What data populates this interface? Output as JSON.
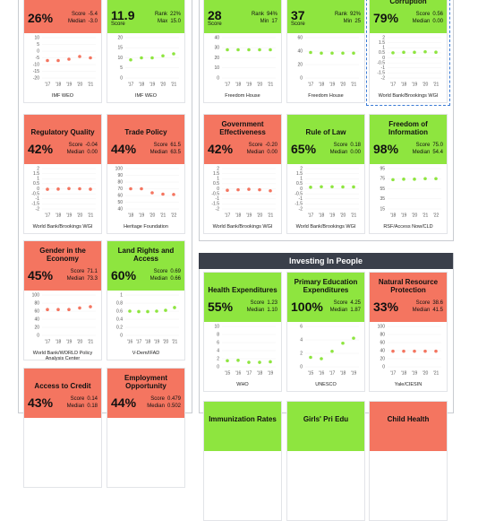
{
  "left_panel": {
    "cards": [
      {
        "score": "26%",
        "stats": [
          {
            "label": "Score",
            "value": "-5.4"
          },
          {
            "label": "Median",
            "value": "-3.0"
          }
        ],
        "color": "#f47560",
        "chart": {
          "ylim": [
            -20,
            10
          ],
          "yticks": [
            10,
            5,
            0,
            -5,
            -10,
            -15,
            -20
          ],
          "x": [
            "'17",
            "'18",
            "'19",
            "'20",
            "'21"
          ],
          "values": [
            -7,
            -7,
            -6,
            -4,
            -5
          ]
        },
        "source": "IMF WEO"
      },
      {
        "score": "11.9",
        "score_caption": "Score",
        "stats": [
          {
            "label": "Rank",
            "value": "22%"
          },
          {
            "label": "Max",
            "value": "15.0"
          }
        ],
        "color": "#8ee53f",
        "chart": {
          "ylim": [
            0,
            20
          ],
          "yticks": [
            20,
            15,
            10,
            5,
            0
          ],
          "x": [
            "'17",
            "'18",
            "'19",
            "'20",
            "'21"
          ],
          "values": [
            9,
            10,
            10,
            11,
            12
          ]
        },
        "source": "IMF WEO"
      },
      {
        "title": "Regulatory Quality",
        "score": "42%",
        "stats": [
          {
            "label": "Score",
            "value": "-0.04"
          },
          {
            "label": "Median",
            "value": "0.00"
          }
        ],
        "color": "#f47560",
        "chart": {
          "ylim": [
            -2,
            2
          ],
          "yticks": [
            2,
            1.5,
            1,
            0.5,
            0,
            -0.5,
            -1,
            -1.5,
            -2
          ],
          "x": [
            "'17",
            "'18",
            "'19",
            "'20",
            "'21"
          ],
          "values": [
            -0.05,
            -0.03,
            0.02,
            0,
            -0.04
          ]
        },
        "source": "World Bank/Brookings WGI"
      },
      {
        "title": "Trade Policy",
        "score": "44%",
        "stats": [
          {
            "label": "Score",
            "value": "61.5"
          },
          {
            "label": "Median",
            "value": "63.5"
          }
        ],
        "color": "#f47560",
        "chart": {
          "ylim": [
            40,
            100
          ],
          "yticks": [
            100,
            90,
            80,
            70,
            60,
            50,
            40
          ],
          "x": [
            "'18",
            "'19",
            "'20",
            "'21",
            "'22"
          ],
          "values": [
            70,
            70,
            64,
            62,
            61.5
          ]
        },
        "source": "Heritage Foundation"
      },
      {
        "title": "Gender in the Economy",
        "score": "45%",
        "stats": [
          {
            "label": "Score",
            "value": "71.1"
          },
          {
            "label": "Median",
            "value": "73.3"
          }
        ],
        "color": "#f47560",
        "chart": {
          "ylim": [
            0,
            100
          ],
          "yticks": [
            100,
            80,
            60,
            40,
            20,
            0
          ],
          "x": [
            "'17",
            "'18",
            "'19",
            "'20",
            "'21"
          ],
          "values": [
            64,
            64,
            64,
            68,
            71.1
          ]
        },
        "source": "World Bank/WORLD Policy Analysis Center"
      },
      {
        "title": "Land Rights and Access",
        "score": "60%",
        "stats": [
          {
            "label": "Score",
            "value": "0.69"
          },
          {
            "label": "Median",
            "value": "0.66"
          }
        ],
        "color": "#8ee53f",
        "chart": {
          "ylim": [
            0,
            1
          ],
          "yticks": [
            1,
            0.8,
            0.6,
            0.4,
            0.2,
            0
          ],
          "x": [
            "'16",
            "'17",
            "'18",
            "'19",
            "'20",
            "'21"
          ],
          "values": [
            0.6,
            0.59,
            0.59,
            0.6,
            0.62,
            0.69
          ]
        },
        "source": "V-Dem/IFAD"
      },
      {
        "title": "Access to Credit",
        "score": "43%",
        "stats": [
          {
            "label": "Score",
            "value": "0.14"
          },
          {
            "label": "Median",
            "value": "0.18"
          }
        ],
        "color": "#f47560"
      },
      {
        "title": "Employment Opportunity",
        "score": "44%",
        "stats": [
          {
            "label": "Score",
            "value": "0.479"
          },
          {
            "label": "Median",
            "value": "0.502"
          }
        ],
        "color": "#f47560"
      }
    ]
  },
  "right_panel": {
    "cards": [
      {
        "score": "28",
        "score_caption": "Score",
        "stats": [
          {
            "label": "Rank",
            "value": "94%"
          },
          {
            "label": "Min",
            "value": "17"
          }
        ],
        "color": "#8ee53f",
        "chart": {
          "ylim": [
            0,
            40
          ],
          "yticks": [
            40,
            30,
            20,
            10,
            0
          ],
          "x": [
            "'17",
            "'18",
            "'19",
            "'20",
            "'21"
          ],
          "values": [
            28,
            28,
            28,
            28,
            28
          ]
        },
        "source": "Freedom House"
      },
      {
        "score": "37",
        "score_caption": "Score",
        "stats": [
          {
            "label": "Rank",
            "value": "92%"
          },
          {
            "label": "Min",
            "value": "25"
          }
        ],
        "color": "#8ee53f",
        "chart": {
          "ylim": [
            0,
            60
          ],
          "yticks": [
            60,
            40,
            20,
            0
          ],
          "x": [
            "'17",
            "'18",
            "'19",
            "'20",
            "'21"
          ],
          "values": [
            38,
            37,
            37,
            37,
            37
          ]
        },
        "source": "Freedom House"
      },
      {
        "title": "Corruption",
        "score": "79%",
        "stats": [
          {
            "label": "Score",
            "value": "0.56"
          },
          {
            "label": "Median",
            "value": "0.00"
          }
        ],
        "color": "#8ee53f",
        "chart": {
          "ylim": [
            -2,
            2
          ],
          "yticks": [
            2,
            1.5,
            1,
            0.5,
            0,
            -0.5,
            -1,
            -1.5,
            -2
          ],
          "x": [
            "'17",
            "'18",
            "'19",
            "'20",
            "'21"
          ],
          "values": [
            0.5,
            0.55,
            0.55,
            0.6,
            0.56
          ]
        },
        "source": "World Bank/Brookings WGI"
      },
      {
        "title": "Government Effectiveness",
        "score": "42%",
        "stats": [
          {
            "label": "Score",
            "value": "-0.20"
          },
          {
            "label": "Median",
            "value": "0.00"
          }
        ],
        "color": "#f47560",
        "chart": {
          "ylim": [
            -2,
            2
          ],
          "yticks": [
            2,
            1.5,
            1,
            0.5,
            0,
            -0.5,
            -1,
            -1.5,
            -2
          ],
          "x": [
            "'17",
            "'18",
            "'19",
            "'20",
            "'21"
          ],
          "values": [
            -0.15,
            -0.1,
            -0.05,
            -0.1,
            -0.2
          ]
        },
        "source": "World Bank/Brookings WGI"
      },
      {
        "title": "Rule of Law",
        "score": "65%",
        "stats": [
          {
            "label": "Score",
            "value": "0.18"
          },
          {
            "label": "Median",
            "value": "0.00"
          }
        ],
        "color": "#8ee53f",
        "chart": {
          "ylim": [
            -2,
            2
          ],
          "yticks": [
            2,
            1.5,
            1,
            0.5,
            0,
            -0.5,
            -1,
            -1.5,
            -2
          ],
          "x": [
            "'17",
            "'18",
            "'19",
            "'20",
            "'21"
          ],
          "values": [
            0.15,
            0.2,
            0.2,
            0.18,
            0.18
          ]
        },
        "source": "World Bank/Brookings WGI"
      },
      {
        "title": "Freedom of Information",
        "score": "98%",
        "stats": [
          {
            "label": "Score",
            "value": "75.0"
          },
          {
            "label": "Median",
            "value": "54.4"
          }
        ],
        "color": "#8ee53f",
        "chart": {
          "ylim": [
            15,
            95
          ],
          "yticks": [
            95,
            75,
            55,
            35,
            15
          ],
          "x": [
            "'18",
            "'19",
            "'20",
            "'21",
            "'22"
          ],
          "values": [
            73,
            74,
            74,
            75,
            75
          ]
        },
        "source": "RSF/Access Now/CLD"
      }
    ]
  },
  "people_panel": {
    "title": "Investing In People",
    "cards": [
      {
        "title": "Health Expenditures",
        "score": "55%",
        "stats": [
          {
            "label": "Score",
            "value": "1.23"
          },
          {
            "label": "Median",
            "value": "1.10"
          }
        ],
        "color": "#8ee53f",
        "chart": {
          "ylim": [
            0,
            10
          ],
          "yticks": [
            10,
            8,
            6,
            4,
            2,
            0
          ],
          "x": [
            "'15",
            "'16",
            "'17",
            "'18",
            "'19"
          ],
          "values": [
            1.5,
            1.6,
            1.1,
            1.1,
            1.23
          ]
        },
        "source": "WHO"
      },
      {
        "title": "Primary Education Expenditures",
        "score": "100%",
        "stats": [
          {
            "label": "Score",
            "value": "4.25"
          },
          {
            "label": "Median",
            "value": "1.87"
          }
        ],
        "color": "#8ee53f",
        "chart": {
          "ylim": [
            0,
            6
          ],
          "yticks": [
            6,
            4,
            2,
            0
          ],
          "x": [
            "'15",
            "'16",
            "'17",
            "'18",
            "'19"
          ],
          "values": [
            1.4,
            1.2,
            2.3,
            3.5,
            4.25
          ]
        },
        "source": "UNESCO"
      },
      {
        "title": "Natural Resource Protection",
        "score": "33%",
        "stats": [
          {
            "label": "Score",
            "value": "38.6"
          },
          {
            "label": "Median",
            "value": "41.5"
          }
        ],
        "color": "#f47560",
        "chart": {
          "ylim": [
            0,
            100
          ],
          "yticks": [
            100,
            80,
            60,
            40,
            20,
            0
          ],
          "x": [
            "'17",
            "'18",
            "'19",
            "'20",
            "'21"
          ],
          "values": [
            38.6,
            38.6,
            38.6,
            38.6,
            38.6
          ]
        },
        "source": "Yale/CIESIN"
      },
      {
        "title": "Immunization Rates",
        "color": "#8ee53f"
      },
      {
        "title": "Girls' Pri Edu",
        "color": "#8ee53f"
      },
      {
        "title": "Child Health",
        "color": "#f47560"
      }
    ]
  }
}
